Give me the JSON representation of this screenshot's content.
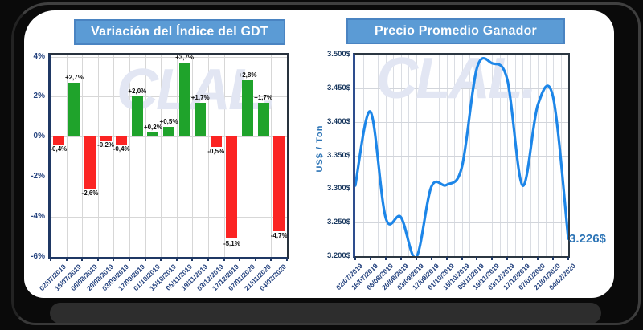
{
  "watermark_text": "CLAL.",
  "chart_data": [
    {
      "type": "bar",
      "title": "Variación del Índice del GDT",
      "categories": [
        "02/07/2019",
        "16/07/2019",
        "06/08/2019",
        "20/08/2019",
        "03/09/2019",
        "17/09/2019",
        "01/10/2019",
        "15/10/2019",
        "05/11/2019",
        "19/11/2019",
        "03/12/2019",
        "17/12/2019",
        "07/01/2020",
        "21/01/2020",
        "04/02/2020"
      ],
      "values": [
        -0.4,
        2.7,
        -2.6,
        -0.2,
        -0.4,
        2.0,
        0.2,
        0.5,
        3.7,
        1.7,
        -0.5,
        -5.1,
        2.8,
        1.7,
        -4.7
      ],
      "bar_labels": [
        "-0,4%",
        "+2,7%",
        "-2,6%",
        "-0,2%",
        "-0,4%",
        "+2,0%",
        "+0,2%",
        "+0,5%",
        "+3,7%",
        "+1,7%",
        "-0,5%",
        "-5,1%",
        "+2,8%",
        "+1,7%",
        "-4,7%"
      ],
      "yticks": [
        {
          "label": "4%",
          "value": 4
        },
        {
          "label": "2%",
          "value": 2
        },
        {
          "label": "0%",
          "value": 0
        },
        {
          "label": "-2%",
          "value": -2
        },
        {
          "label": "-4%",
          "value": -4
        },
        {
          "label": "-6%",
          "value": -6
        }
      ],
      "ylim": [
        -6,
        4.1
      ],
      "grid": true,
      "legend": "none",
      "watermark": "CLAL.",
      "colors": {
        "positive": "#1fa32b",
        "negative": "#fb2423",
        "title_bg": "#5b9bd5",
        "title_text": "#ffffff",
        "axis": "#1f3864",
        "tick_text": "#24427e"
      }
    },
    {
      "type": "line",
      "title": "Precio Promedio Ganador",
      "ylabel": "US$ / Ton",
      "categories": [
        "02/07/2019",
        "16/07/2019",
        "06/08/2019",
        "20/08/2019",
        "03/09/2019",
        "17/09/2019",
        "01/10/2019",
        "15/10/2019",
        "05/11/2019",
        "19/11/2019",
        "03/12/2019",
        "17/12/2019",
        "07/01/2020",
        "21/01/2020",
        "04/02/2020"
      ],
      "values": [
        3.305,
        3.415,
        3.257,
        3.258,
        3.198,
        3.303,
        3.306,
        3.332,
        3.48,
        3.487,
        3.462,
        3.305,
        3.425,
        3.437,
        3.226
      ],
      "yticks": [
        {
          "label": "3.500$",
          "value": 3.5
        },
        {
          "label": "3.450$",
          "value": 3.45
        },
        {
          "label": "3.400$",
          "value": 3.4
        },
        {
          "label": "3.350$",
          "value": 3.35
        },
        {
          "label": "3.300$",
          "value": 3.3
        },
        {
          "label": "3.250$",
          "value": 3.25
        },
        {
          "label": "3.200$",
          "value": 3.2
        }
      ],
      "ylim": [
        3.2,
        3.5
      ],
      "grid": true,
      "legend": "none",
      "end_annotation": "3.226$",
      "watermark": "CLAL.",
      "colors": {
        "line": "#1d86e8",
        "title_bg": "#5b9bd5",
        "title_text": "#ffffff",
        "annotation": "#2e75b6",
        "tick_text": "#17365d",
        "ylabel_text": "#2e75b6",
        "axis": "#1f3864"
      }
    }
  ]
}
